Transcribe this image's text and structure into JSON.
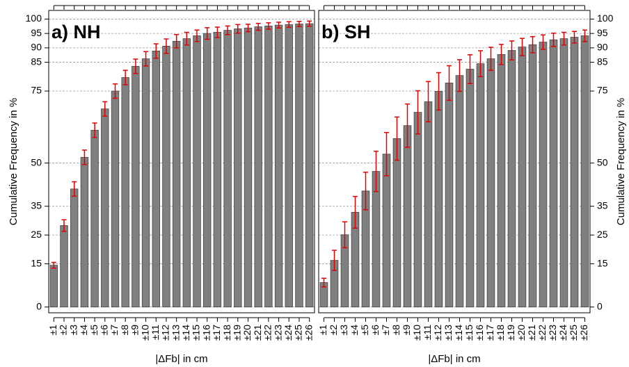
{
  "chart_data": [
    {
      "type": "bar",
      "title": "a) NH",
      "xlabel": "|ΔFb| in cm",
      "ylabel": "Cumulative Frequency in %",
      "categories": [
        "±1",
        "±2",
        "±3",
        "±4",
        "±5",
        "±6",
        "±7",
        "±8",
        "±9",
        "±10",
        "±11",
        "±12",
        "±13",
        "±14",
        "±15",
        "±16",
        "±17",
        "±18",
        "±19",
        "±20",
        "±21",
        "±22",
        "±23",
        "±24",
        "±25",
        "±26"
      ],
      "values": [
        14.5,
        28.3,
        41,
        52,
        61.4,
        68.8,
        75,
        79.7,
        83.6,
        86.2,
        88.9,
        90.6,
        92.3,
        93.2,
        94.2,
        95,
        95.4,
        96.1,
        96.6,
        96.9,
        97.3,
        97.6,
        97.9,
        98.1,
        98.3,
        98.4
      ],
      "errors": [
        1,
        2,
        2.5,
        2.5,
        2.5,
        2.5,
        2.5,
        2.5,
        2.5,
        2.5,
        2.5,
        2.5,
        2.3,
        2.2,
        2,
        2,
        1.8,
        1.5,
        1.5,
        1.3,
        1.2,
        1.1,
        1,
        1,
        0.9,
        0.9
      ],
      "color": "#808080",
      "error_color": "#e00000",
      "ylim": [
        -2,
        103
      ],
      "yticks": [
        0,
        15,
        25,
        35,
        50,
        75,
        85,
        90,
        95,
        100
      ],
      "grid": true,
      "yaxis_side": "left"
    },
    {
      "type": "bar",
      "title": "b) SH",
      "xlabel": "|ΔFb| in cm",
      "ylabel": "Cumulative Frequency in %",
      "categories": [
        "±1",
        "±2",
        "±3",
        "±4",
        "±5",
        "±6",
        "±7",
        "±8",
        "±9",
        "±10",
        "±11",
        "±12",
        "±13",
        "±14",
        "±15",
        "±16",
        "±17",
        "±18",
        "±19",
        "±20",
        "±21",
        "±22",
        "±23",
        "±24",
        "±25",
        "±26"
      ],
      "values": [
        8.5,
        16.2,
        25.1,
        32.9,
        40.3,
        47.1,
        53.1,
        58.5,
        63,
        67.6,
        71.3,
        74.9,
        77.8,
        80.4,
        82.6,
        84.5,
        86.2,
        87.7,
        89.1,
        90.3,
        91.1,
        92,
        92.8,
        93.2,
        93.7,
        94.2
      ],
      "errors": [
        1.5,
        3.5,
        4.5,
        5.5,
        6.5,
        7,
        7.5,
        7.5,
        7.5,
        7.5,
        7,
        6.5,
        6,
        5.5,
        5,
        4.5,
        4,
        3.5,
        3.3,
        3,
        2.8,
        2.5,
        2.3,
        2.2,
        2,
        2
      ],
      "color": "#808080",
      "error_color": "#e00000",
      "ylim": [
        -2,
        103
      ],
      "yticks": [
        0,
        15,
        25,
        35,
        50,
        75,
        85,
        90,
        95,
        100
      ],
      "grid": true,
      "yaxis_side": "right"
    }
  ]
}
